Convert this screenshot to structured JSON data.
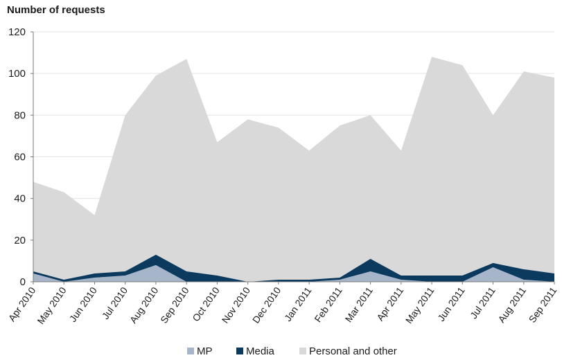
{
  "chart_data": {
    "type": "area",
    "stacked": true,
    "ylabel": "Number of requests",
    "ylim": [
      0,
      120
    ],
    "yticks": [
      0,
      20,
      40,
      60,
      80,
      100,
      120
    ],
    "grid": true,
    "legend_position": "bottom",
    "categories": [
      "Apr 2010",
      "May 2010",
      "Jun 2010",
      "Jul 2010",
      "Aug 2010",
      "Sep 2010",
      "Oct 2010",
      "Nov 2010",
      "Dec 2010",
      "Jan 2011",
      "Feb 2011",
      "Mar 2011",
      "Apr 2011",
      "May 2011",
      "Jun 2011",
      "Jul 2011",
      "Aug 2011",
      "Sep 2011"
    ],
    "series": [
      {
        "name": "MP",
        "color": "#a6b5c9",
        "values": [
          4,
          0,
          2,
          3,
          8,
          0,
          0,
          0,
          0,
          0,
          1,
          5,
          1,
          0,
          0,
          7,
          1,
          0
        ]
      },
      {
        "name": "Media",
        "color": "#0b3a5e",
        "values": [
          1,
          1,
          2,
          2,
          5,
          5,
          3,
          0,
          1,
          1,
          1,
          6,
          2,
          3,
          3,
          2,
          5,
          4
        ]
      },
      {
        "name": "Personal and other",
        "color": "#d9d9d9",
        "values": [
          43,
          42,
          28,
          75,
          86,
          102,
          64,
          78,
          73,
          62,
          73,
          69,
          60,
          105,
          101,
          71,
          95,
          94
        ]
      }
    ]
  }
}
